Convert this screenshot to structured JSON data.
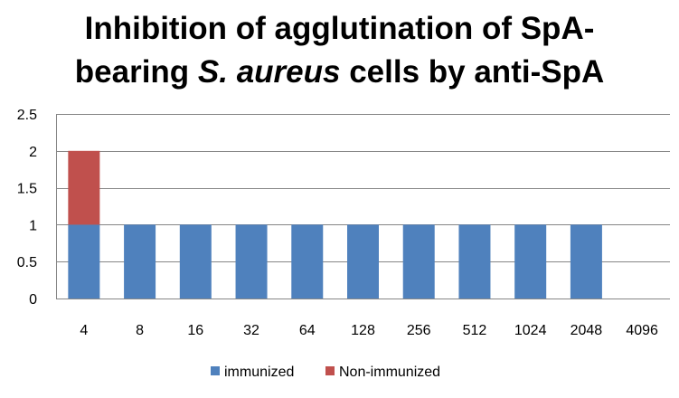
{
  "chart_data": {
    "type": "bar",
    "stacked": true,
    "title_line1": "Inhibition of agglutination of SpA-",
    "title_line2_pre": "bearing ",
    "title_line2_em": "S. aureus",
    "title_line2_post": " cells by anti-SpA",
    "categories": [
      "4",
      "8",
      "16",
      "32",
      "64",
      "128",
      "256",
      "512",
      "1024",
      "2048",
      "4096"
    ],
    "series": [
      {
        "name": "immunized",
        "color": "#4f81bd",
        "values": [
          1,
          1,
          1,
          1,
          1,
          1,
          1,
          1,
          1,
          1,
          0
        ]
      },
      {
        "name": "Non-immunized",
        "color": "#c0504d",
        "values": [
          1,
          0,
          0,
          0,
          0,
          0,
          0,
          0,
          0,
          0,
          0
        ]
      }
    ],
    "ylim": [
      0,
      2.5
    ],
    "yticks": [
      "0",
      "0.5",
      "1",
      "1.5",
      "2",
      "2.5"
    ],
    "ytick_values": [
      0,
      0.5,
      1,
      1.5,
      2,
      2.5
    ],
    "grid": true,
    "legend_position": "bottom",
    "xlabel": "",
    "ylabel": ""
  }
}
